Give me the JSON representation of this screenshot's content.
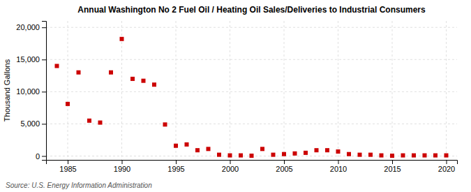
{
  "chart_data": {
    "type": "scatter",
    "title": "Annual Washington No 2 Fuel Oil / Heating Oil Sales/Deliveries to Industrial Consumers",
    "ylabel": "Thousand Gallons",
    "annotations": [
      "Source: U.S. Energy Information Administration"
    ],
    "x": [
      1984,
      1985,
      1986,
      1987,
      1988,
      1989,
      1990,
      1991,
      1992,
      1993,
      1994,
      1995,
      1996,
      1997,
      1998,
      1999,
      2000,
      2001,
      2002,
      2003,
      2004,
      2005,
      2006,
      2007,
      2008,
      2009,
      2010,
      2011,
      2012,
      2013,
      2014,
      2015,
      2016,
      2017,
      2018,
      2019,
      2020
    ],
    "values": [
      14000,
      8100,
      13000,
      5500,
      5200,
      13000,
      18200,
      12000,
      11700,
      11100,
      4900,
      1600,
      1800,
      900,
      1100,
      200,
      100,
      100,
      50,
      1100,
      200,
      300,
      400,
      500,
      900,
      900,
      700,
      300,
      200,
      200,
      100,
      50,
      100,
      100,
      100,
      100,
      100
    ],
    "color": "#cc0000",
    "marker": "square",
    "xlim": [
      1983,
      2021
    ],
    "ylim": [
      -600,
      21000
    ],
    "xticks": [
      1985,
      1990,
      1995,
      2000,
      2005,
      2010,
      2015,
      2020
    ],
    "yticks": [
      0,
      {
        "value": 5000,
        "label": "5,000"
      },
      {
        "value": 10000,
        "label": "10,000"
      },
      {
        "value": 15000,
        "label": "15,000"
      },
      {
        "value": 20000,
        "label": "20,000"
      }
    ],
    "grid": true
  }
}
